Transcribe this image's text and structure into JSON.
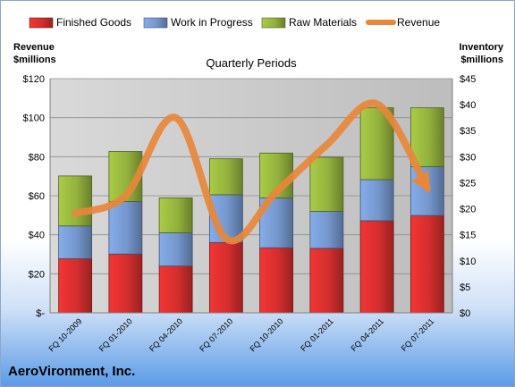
{
  "chart_data": {
    "type": "bar",
    "title": "Quarterly Periods",
    "categories": [
      "FQ 10-2009",
      "FQ 01-2010",
      "FQ 04-2010",
      "FQ 07-2010",
      "FQ 10-2010",
      "FQ 01-2011",
      "FQ 04-2011",
      "FQ 07-2011"
    ],
    "series": [
      {
        "name": "Finished Goods",
        "axis": "right",
        "color": "#d42e2e",
        "values": [
          10.4,
          11.3,
          9.0,
          13.5,
          12.5,
          12.4,
          17.7,
          18.7
        ]
      },
      {
        "name": "Work in Progress",
        "axis": "right",
        "color": "#7496cc",
        "values": [
          6.3,
          10.1,
          6.4,
          9.2,
          9.6,
          7.1,
          7.9,
          9.4
        ]
      },
      {
        "name": "Raw Materials",
        "axis": "right",
        "color": "#93b13d",
        "values": [
          9.6,
          9.6,
          6.7,
          6.9,
          8.6,
          10.4,
          13.8,
          11.3
        ]
      },
      {
        "name": "Revenue",
        "axis": "left",
        "type": "line",
        "color": "#e8873a",
        "values": [
          51,
          60,
          100,
          38,
          62,
          86,
          107,
          64
        ]
      }
    ],
    "y_left": {
      "label_line1": "Revenue",
      "label_line2": "$millions",
      "ylim": [
        0,
        120
      ],
      "ticks": [
        "$-",
        "$20",
        "$40",
        "$60",
        "$80",
        "$100",
        "$120"
      ]
    },
    "y_right": {
      "label_line1": "Inventory",
      "label_line2": "$millions",
      "ylim": [
        0,
        45
      ],
      "ticks": [
        "$0",
        "$5",
        "$10",
        "$15",
        "$20",
        "$25",
        "$30",
        "$35",
        "$40",
        "$45"
      ]
    },
    "legend_position": "top",
    "grid": true
  },
  "company": "AeroVironment, Inc."
}
